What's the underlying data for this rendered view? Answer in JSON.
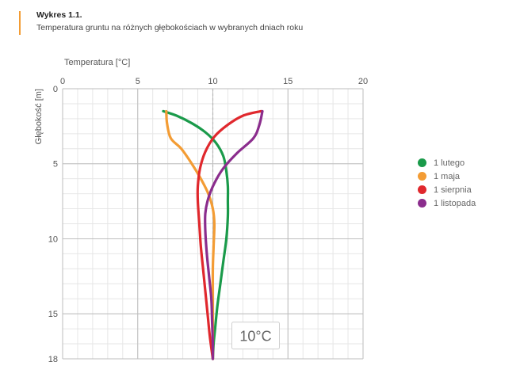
{
  "header": {
    "title": "Wykres 1.1.",
    "subtitle": "Temperatura gruntu na różnych głębokościach w wybranych dniach roku",
    "accent_color": "#f39c34"
  },
  "chart_data": {
    "type": "line",
    "title": "Wykres 1.1.",
    "subtitle": "Temperatura gruntu na różnych głębokościach w wybranych dniach roku",
    "xlabel": "Temperatura [°C]",
    "ylabel": "Głębokość [m]",
    "xlim": [
      0,
      20
    ],
    "ylim": [
      0,
      18
    ],
    "y_inverted": true,
    "x_axis_position": "top",
    "x_ticks": [
      0,
      5,
      10,
      15,
      20
    ],
    "y_ticks": [
      0,
      5,
      10,
      15,
      18
    ],
    "grid": true,
    "reference_line": {
      "x": 10,
      "style": "dashed"
    },
    "annotation": "10°C",
    "legend_position": "right",
    "series": [
      {
        "name": "1 lutego",
        "color": "#1a9a4a",
        "points": [
          [
            6.7,
            1.5
          ],
          [
            7.6,
            1.8
          ],
          [
            8.6,
            2.3
          ],
          [
            9.5,
            2.9
          ],
          [
            10.2,
            3.6
          ],
          [
            10.7,
            4.5
          ],
          [
            10.9,
            5.5
          ],
          [
            11.0,
            6.5
          ],
          [
            11.0,
            7.5
          ],
          [
            11.0,
            8.5
          ],
          [
            10.9,
            10
          ],
          [
            10.7,
            11.5
          ],
          [
            10.5,
            13
          ],
          [
            10.3,
            14.5
          ],
          [
            10.15,
            16
          ],
          [
            10.05,
            17
          ],
          [
            10.0,
            18
          ]
        ]
      },
      {
        "name": "1 maja",
        "color": "#f39c34",
        "points": [
          [
            6.9,
            1.5
          ],
          [
            6.95,
            2.3
          ],
          [
            7.2,
            3.3
          ],
          [
            7.9,
            4.0
          ],
          [
            8.6,
            5.0
          ],
          [
            9.2,
            6.0
          ],
          [
            9.7,
            7.0
          ],
          [
            10.0,
            8.0
          ],
          [
            10.1,
            9.0
          ],
          [
            10.05,
            10.5
          ],
          [
            10.0,
            12
          ],
          [
            10.0,
            14
          ],
          [
            10.0,
            16
          ],
          [
            10.0,
            18
          ]
        ]
      },
      {
        "name": "1 sierpnia",
        "color": "#e0282d",
        "points": [
          [
            13.2,
            1.5
          ],
          [
            12.0,
            1.8
          ],
          [
            11.0,
            2.4
          ],
          [
            10.1,
            3.2
          ],
          [
            9.5,
            4.2
          ],
          [
            9.15,
            5.3
          ],
          [
            9.0,
            6.5
          ],
          [
            9.0,
            7.5
          ],
          [
            9.1,
            9
          ],
          [
            9.2,
            10.5
          ],
          [
            9.35,
            12
          ],
          [
            9.5,
            13.5
          ],
          [
            9.65,
            15
          ],
          [
            9.8,
            16.5
          ],
          [
            10.0,
            18
          ]
        ]
      },
      {
        "name": "1 listopada",
        "color": "#8b2d8d",
        "points": [
          [
            13.3,
            1.5
          ],
          [
            13.1,
            2.4
          ],
          [
            12.7,
            3.3
          ],
          [
            11.6,
            4.3
          ],
          [
            10.7,
            5.3
          ],
          [
            10.1,
            6.3
          ],
          [
            9.7,
            7.3
          ],
          [
            9.5,
            8.3
          ],
          [
            9.5,
            9.5
          ],
          [
            9.6,
            11
          ],
          [
            9.75,
            12.5
          ],
          [
            9.9,
            14
          ],
          [
            9.95,
            15.5
          ],
          [
            10.0,
            17
          ],
          [
            10.0,
            18
          ]
        ]
      }
    ]
  }
}
